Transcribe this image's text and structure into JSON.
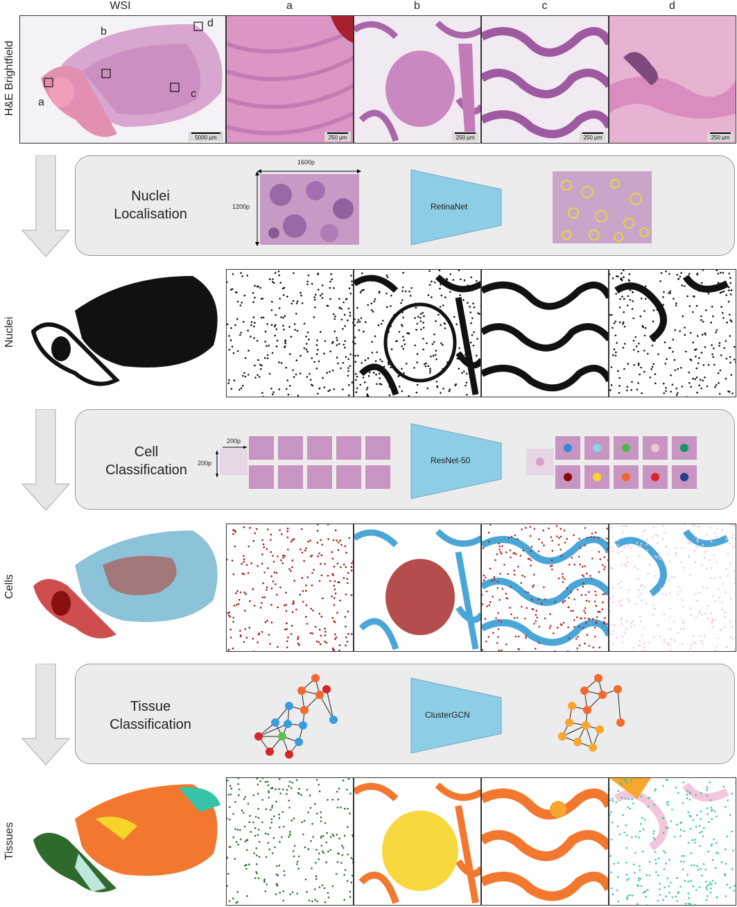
{
  "columns": [
    "WSI",
    "a",
    "b",
    "c",
    "d"
  ],
  "rows": {
    "he": "H&E Brightfield",
    "nuclei": "Nuclei",
    "cells": "Cells",
    "tissues": "Tissues"
  },
  "wsi_region_labels": [
    "a",
    "b",
    "c",
    "d"
  ],
  "scale_bars": {
    "wsi": "5000 μm",
    "crop": "250 μm"
  },
  "stages": {
    "nuclei_localisation": {
      "title_line1": "Nuclei",
      "title_line2": "Localisation",
      "network": "RetinaNet",
      "width_label": "1600p",
      "height_label": "1200p"
    },
    "cell_classification": {
      "title_line1": "Cell",
      "title_line2": "Classification",
      "network": "ResNet-50",
      "width_label": "200p",
      "height_label": "200p",
      "cell_class_colors": [
        "#2e8bd8",
        "#86d8ec",
        "#4cb84a",
        "#f2c4d6",
        "#169370",
        "#8b0a0f",
        "#f8d62a",
        "#ee6a2a",
        "#d8232a",
        "#243d8e"
      ]
    },
    "tissue_classification": {
      "title_line1": "Tissue",
      "title_line2": "Classification",
      "network": "ClusterGCN"
    }
  },
  "colors": {
    "panel_bg": "#ececec",
    "network_fill": "#8ecde6",
    "arrow_fill": "#e6e6e6",
    "he_pink": "#d98cc0",
    "he_purple": "#7a3a8a",
    "node_orange": "#f26a2e",
    "node_blue": "#3a9be0",
    "node_red": "#d7262b",
    "node_green": "#5cc04c",
    "node_light_orange": "#f8a62e",
    "tissue_dark_green": "#2d6a2b",
    "tissue_orange": "#f2782f",
    "tissue_yellow": "#f6d42a",
    "tissue_teal": "#36c4a8",
    "tissue_pink": "#f4c6dc",
    "cell_light_blue": "#8cc3d8",
    "cell_dark_red": "#8b1012"
  }
}
